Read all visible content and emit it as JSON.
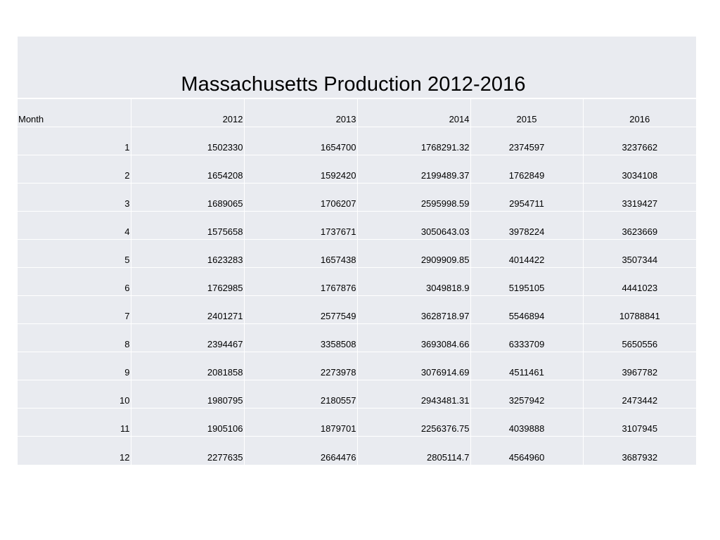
{
  "title": "Massachusetts Production 2012-2016",
  "headers": [
    "Month",
    "2012",
    "2013",
    "2014",
    "2015",
    "2016"
  ],
  "rows": [
    [
      "1",
      "1502330",
      "1654700",
      "1768291.32",
      "2374597",
      "3237662"
    ],
    [
      "2",
      "1654208",
      "1592420",
      "2199489.37",
      "1762849",
      "3034108"
    ],
    [
      "3",
      "1689065",
      "1706207",
      "2595998.59",
      "2954711",
      "3319427"
    ],
    [
      "4",
      "1575658",
      "1737671",
      "3050643.03",
      "3978224",
      "3623669"
    ],
    [
      "5",
      "1623283",
      "1657438",
      "2909909.85",
      "4014422",
      "3507344"
    ],
    [
      "6",
      "1762985",
      "1767876",
      "3049818.9",
      "5195105",
      "4441023"
    ],
    [
      "7",
      "2401271",
      "2577549",
      "3628718.97",
      "5546894",
      "10788841"
    ],
    [
      "8",
      "2394467",
      "3358508",
      "3693084.66",
      "6333709",
      "5650556"
    ],
    [
      "9",
      "2081858",
      "2273978",
      "3076914.69",
      "4511461",
      "3967782"
    ],
    [
      "10",
      "1980795",
      "2180557",
      "2943481.31",
      "3257942",
      "2473442"
    ],
    [
      "11",
      "1905106",
      "1879701",
      "2256376.75",
      "4039888",
      "3107945"
    ],
    [
      "12",
      "2277635",
      "2664476",
      "2805114.7",
      "4564960",
      "3687932"
    ]
  ]
}
